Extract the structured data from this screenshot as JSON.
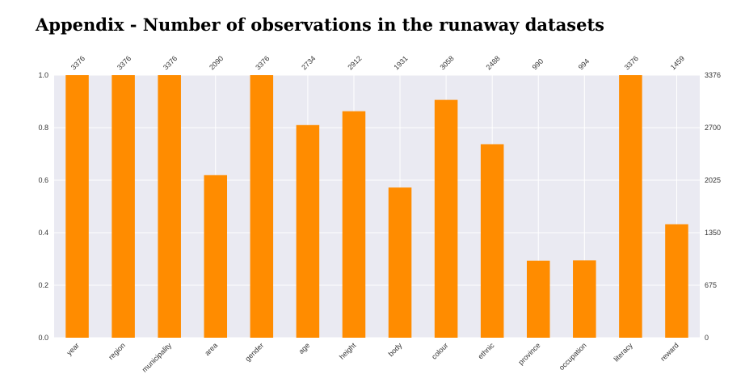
{
  "title": "Appendix - Number of observations in the runaway datasets",
  "chart_data": {
    "type": "bar",
    "categories": [
      "year",
      "region",
      "municipality",
      "area",
      "gender",
      "age",
      "height",
      "body",
      "colour",
      "ethnic",
      "province",
      "occupation",
      "literacy",
      "reward"
    ],
    "values": [
      3376,
      3376,
      3376,
      2090,
      3376,
      2734,
      2912,
      1931,
      3058,
      2488,
      990,
      994,
      3376,
      1459
    ],
    "data_labels": [
      "3376",
      "3376",
      "3376",
      "2090",
      "3376",
      "2734",
      "2912",
      "1931",
      "3058",
      "2488",
      "990",
      "994",
      "3376",
      "1459"
    ],
    "total": 3376,
    "left_axis": {
      "ticks": [
        0.0,
        0.2,
        0.4,
        0.6,
        0.8,
        1.0
      ],
      "tick_labels": [
        "0.0",
        "0.2",
        "0.4",
        "0.6",
        "0.8",
        "1.0"
      ],
      "ylim": [
        0,
        1
      ]
    },
    "right_axis": {
      "ticks": [
        0,
        675,
        1350,
        2025,
        2700,
        3376
      ],
      "tick_labels": [
        "0",
        "675",
        "1350",
        "2025",
        "2700",
        "3376"
      ],
      "ylim": [
        0,
        3376
      ]
    },
    "bar_color": "#ff8c00",
    "background_color": "#eaeaf2",
    "grid_color": "#ffffff",
    "grid": true,
    "legend": "none"
  }
}
